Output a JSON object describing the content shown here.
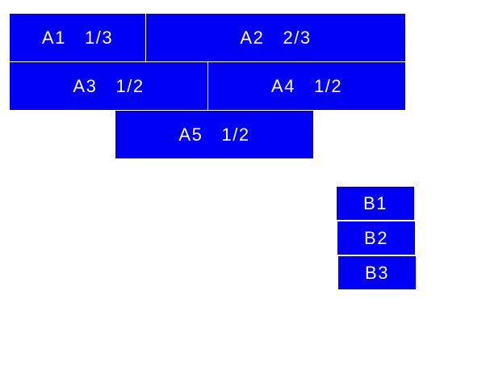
{
  "accent_color": "#0000f5",
  "group_a": [
    {
      "label": "A1  1/3",
      "fraction": "1/3"
    },
    {
      "label": "A2  2/3",
      "fraction": "2/3"
    },
    {
      "label": "A3  1/2",
      "fraction": "1/2"
    },
    {
      "label": "A4  1/2",
      "fraction": "1/2"
    },
    {
      "label": "A5  1/2",
      "fraction": "1/2"
    }
  ],
  "group_b": [
    {
      "label": "B1"
    },
    {
      "label": "B2"
    },
    {
      "label": "B3"
    }
  ]
}
